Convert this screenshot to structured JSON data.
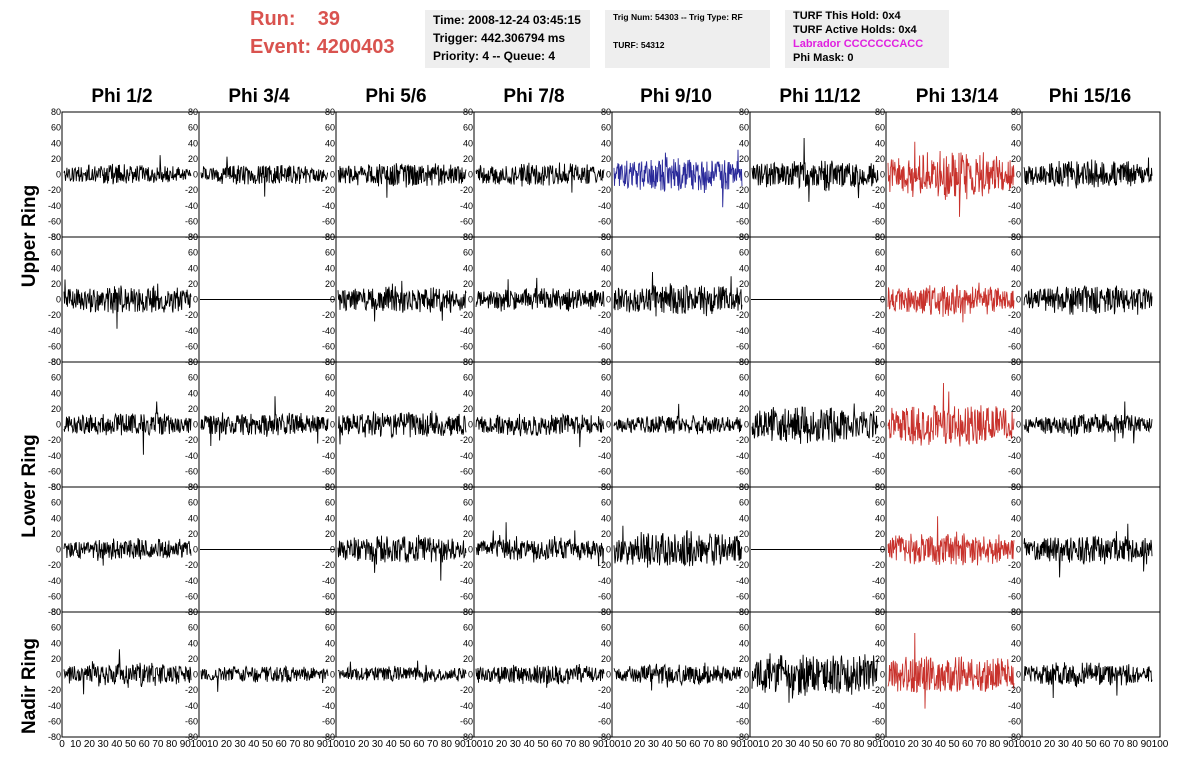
{
  "header": {
    "run_label": "Run:",
    "run_value": "39",
    "event_label": "Event:",
    "event_value": "4200403",
    "time_line": "Time: 2008-12-24 03:45:15",
    "trigger_line": "Trigger: 442.306794 ms",
    "priority_line": "Priority: 4 -- Queue: 4",
    "trig_num_line": "Trig Num: 54303 -- Trig Type: RF",
    "turf_line": "TURF: 54312",
    "turf_hold_line": "TURF This Hold: 0x4",
    "turf_active_line": "TURF Active Holds: 0x4",
    "labrador_line": "Labrador CCCCCCCACC",
    "phi_mask_line": "Phi Mask: 0"
  },
  "columns": [
    "Phi 1/2",
    "Phi 3/4",
    "Phi 5/6",
    "Phi 7/8",
    "Phi 9/10",
    "Phi 11/12",
    "Phi 13/14",
    "Phi 15/16"
  ],
  "row_labels": [
    "Upper Ring",
    "Lower Ring",
    "Nadir Ring"
  ],
  "colors": {
    "normal": "#000000",
    "blue": "#2a2a9a",
    "red": "#c8322c",
    "run_text": "#d9534f",
    "magenta": "#e020e0",
    "info_bg": "#eeeeee"
  },
  "chart_data": {
    "type": "line",
    "x_range": [
      0,
      100
    ],
    "y_range": [
      -80,
      80
    ],
    "x_ticks": [
      "0",
      "10",
      "20",
      "30",
      "40",
      "50",
      "60",
      "70",
      "80",
      "90",
      "100"
    ],
    "y_ticks": [
      "80",
      "60",
      "40",
      "20",
      "0",
      "-20",
      "-40",
      "-60",
      "-80"
    ],
    "panels": [
      {
        "row": 0,
        "col": 0,
        "color": "normal",
        "amplitude": 10,
        "flat": false
      },
      {
        "row": 0,
        "col": 1,
        "color": "normal",
        "amplitude": 10,
        "flat": false
      },
      {
        "row": 0,
        "col": 2,
        "color": "normal",
        "amplitude": 12,
        "flat": false
      },
      {
        "row": 0,
        "col": 3,
        "color": "normal",
        "amplitude": 12,
        "flat": false
      },
      {
        "row": 0,
        "col": 4,
        "color": "blue",
        "amplitude": 18,
        "flat": false
      },
      {
        "row": 0,
        "col": 5,
        "color": "normal",
        "amplitude": 16,
        "flat": false
      },
      {
        "row": 0,
        "col": 6,
        "color": "red",
        "amplitude": 25,
        "flat": false
      },
      {
        "row": 0,
        "col": 7,
        "color": "normal",
        "amplitude": 14,
        "flat": false
      },
      {
        "row": 1,
        "col": 0,
        "color": "normal",
        "amplitude": 14,
        "flat": false
      },
      {
        "row": 1,
        "col": 1,
        "color": "normal",
        "amplitude": 0,
        "flat": true
      },
      {
        "row": 1,
        "col": 2,
        "color": "normal",
        "amplitude": 14,
        "flat": false
      },
      {
        "row": 1,
        "col": 3,
        "color": "normal",
        "amplitude": 12,
        "flat": false
      },
      {
        "row": 1,
        "col": 4,
        "color": "normal",
        "amplitude": 16,
        "flat": false
      },
      {
        "row": 1,
        "col": 5,
        "color": "normal",
        "amplitude": 0,
        "flat": true
      },
      {
        "row": 1,
        "col": 6,
        "color": "red",
        "amplitude": 16,
        "flat": false
      },
      {
        "row": 1,
        "col": 7,
        "color": "normal",
        "amplitude": 14,
        "flat": false
      },
      {
        "row": 2,
        "col": 0,
        "color": "normal",
        "amplitude": 12,
        "flat": false
      },
      {
        "row": 2,
        "col": 1,
        "color": "normal",
        "amplitude": 12,
        "flat": false
      },
      {
        "row": 2,
        "col": 2,
        "color": "normal",
        "amplitude": 14,
        "flat": false
      },
      {
        "row": 2,
        "col": 3,
        "color": "normal",
        "amplitude": 12,
        "flat": false
      },
      {
        "row": 2,
        "col": 4,
        "color": "normal",
        "amplitude": 10,
        "flat": false
      },
      {
        "row": 2,
        "col": 5,
        "color": "normal",
        "amplitude": 18,
        "flat": false
      },
      {
        "row": 2,
        "col": 6,
        "color": "red",
        "amplitude": 22,
        "flat": false
      },
      {
        "row": 2,
        "col": 7,
        "color": "normal",
        "amplitude": 10,
        "flat": false
      },
      {
        "row": 3,
        "col": 0,
        "color": "normal",
        "amplitude": 12,
        "flat": false
      },
      {
        "row": 3,
        "col": 1,
        "color": "normal",
        "amplitude": 0,
        "flat": true
      },
      {
        "row": 3,
        "col": 2,
        "color": "normal",
        "amplitude": 14,
        "flat": false
      },
      {
        "row": 3,
        "col": 3,
        "color": "normal",
        "amplitude": 12,
        "flat": false
      },
      {
        "row": 3,
        "col": 4,
        "color": "normal",
        "amplitude": 18,
        "flat": false
      },
      {
        "row": 3,
        "col": 5,
        "color": "normal",
        "amplitude": 0,
        "flat": true
      },
      {
        "row": 3,
        "col": 6,
        "color": "red",
        "amplitude": 16,
        "flat": false
      },
      {
        "row": 3,
        "col": 7,
        "color": "normal",
        "amplitude": 14,
        "flat": false
      },
      {
        "row": 4,
        "col": 0,
        "color": "normal",
        "amplitude": 12,
        "flat": false
      },
      {
        "row": 4,
        "col": 1,
        "color": "normal",
        "amplitude": 8,
        "flat": false
      },
      {
        "row": 4,
        "col": 2,
        "color": "normal",
        "amplitude": 8,
        "flat": false
      },
      {
        "row": 4,
        "col": 3,
        "color": "normal",
        "amplitude": 10,
        "flat": false
      },
      {
        "row": 4,
        "col": 4,
        "color": "normal",
        "amplitude": 10,
        "flat": false
      },
      {
        "row": 4,
        "col": 5,
        "color": "normal",
        "amplitude": 22,
        "flat": false
      },
      {
        "row": 4,
        "col": 6,
        "color": "red",
        "amplitude": 20,
        "flat": false
      },
      {
        "row": 4,
        "col": 7,
        "color": "normal",
        "amplitude": 12,
        "flat": false
      }
    ]
  }
}
